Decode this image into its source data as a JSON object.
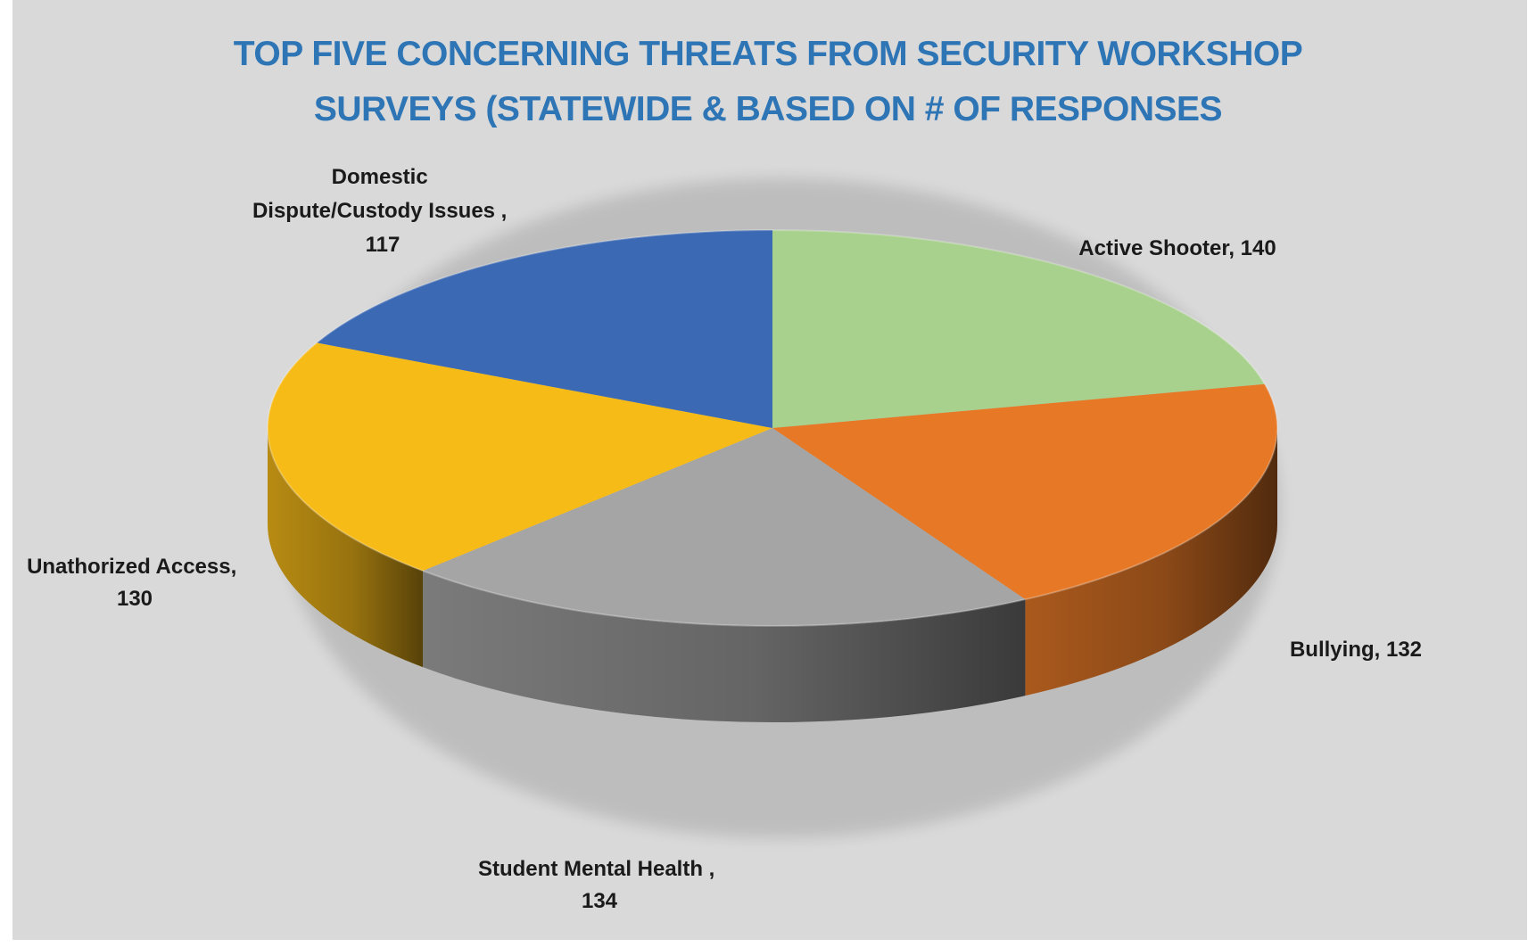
{
  "chart_data": {
    "type": "pie",
    "title_lines": [
      "TOP FIVE CONCERNING THREATS FROM SECURITY WORKSHOP",
      "SURVEYS (STATEWIDE & BASED ON # OF RESPONSES"
    ],
    "title_color": "#2e75b6",
    "style": "3d",
    "slices": [
      {
        "label": "Active Shooter",
        "value": 140,
        "color": "#a9d18e",
        "label_lines": [
          "Active Shooter, 140"
        ]
      },
      {
        "label": "Bullying",
        "value": 132,
        "color": "#e67826",
        "label_lines": [
          "Bullying, 132"
        ]
      },
      {
        "label": "Student Mental Health",
        "value": 134,
        "color": "#a5a5a5",
        "label_lines": [
          "Student Mental Health ,",
          "134"
        ]
      },
      {
        "label": "Unathorized Access",
        "value": 130,
        "color": "#f7bb18",
        "label_lines": [
          "Unathorized Access,",
          "130"
        ]
      },
      {
        "label": "Domestic Dispute/Custody Issues",
        "value": 117,
        "color": "#3b69b3",
        "label_lines": [
          "Domestic",
          "Dispute/Custody Issues ,",
          "117"
        ]
      }
    ]
  }
}
